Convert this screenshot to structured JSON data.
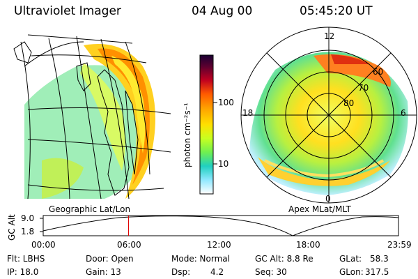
{
  "header": {
    "title": "Ultraviolet Imager",
    "date": "04 Aug 00",
    "time": "05:45:20 UT"
  },
  "left_panel": {
    "label": "Geographic Lat/Lon"
  },
  "right_panel": {
    "label": "Apex MLat/MLT",
    "mlt_labels": {
      "top": "12",
      "left": "18",
      "right": "6",
      "bottom": "0"
    },
    "lat_labels": [
      "60",
      "70",
      "80"
    ]
  },
  "colorbar": {
    "unit": "photon cm⁻²s⁻¹",
    "ticks": [
      "100",
      "10"
    ],
    "colors": [
      "#1a0033",
      "#5a0030",
      "#a80020",
      "#e00010",
      "#ff5a00",
      "#ffa000",
      "#ffe000",
      "#d8ff20",
      "#90ff40",
      "#40f070",
      "#20d0c0",
      "#60e0f0",
      "#b0f0ff",
      "#ffffff"
    ]
  },
  "altitude_plot": {
    "ylabel": "GC Alt",
    "yticks": [
      "9.0",
      "1.8"
    ],
    "xticks": [
      "00:00",
      "06:00",
      "12:00",
      "18:00",
      "23:59"
    ],
    "marker_time_hours": 5.76,
    "marker_color": "#e00000"
  },
  "info": {
    "flt": "Flt: LBHS",
    "ip": "IP: 18.0",
    "door": "Door: Open",
    "gain": "Gain: 13",
    "mode": "Mode: Normal",
    "dsp_label": "Dsp:",
    "dsp_value": "4.2",
    "gcalt": "GC Alt: 8.8 Re",
    "seq": "Seq: 30",
    "glat_label": "GLat:",
    "glat_value": "58.3",
    "glon_label": "GLon:",
    "glon_value": "317.5"
  }
}
